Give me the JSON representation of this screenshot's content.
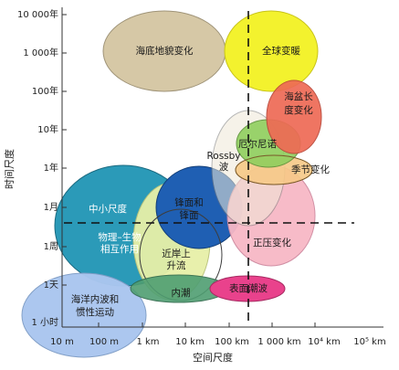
{
  "axes": {
    "y_title": "时间尺度",
    "x_title": "空间尺度",
    "y_ticks": [
      "10 000年",
      "1 000年",
      "100年",
      "10年",
      "1年",
      "1月",
      "1周",
      "1天",
      "1 小时"
    ],
    "x_ticks": [
      "10 m",
      "100 m",
      "1 km",
      "10 km",
      "100 km",
      "1 000 km",
      "10⁴ km",
      "10⁵ km"
    ]
  },
  "regions": {
    "seafloor": "海底地貌变化",
    "global_warming": "全球变暖",
    "basin_line1": "海盆长",
    "basin_line2": "度变化",
    "elnino": "厄尔尼诺",
    "rossby_line1": "Rossby",
    "rossby_line2": "波",
    "seasonal": "季节变化",
    "meso": "中小尺度",
    "fronts_line1": "锋面和",
    "fronts_line2": "锋面",
    "biophys_line1": "物理–生物",
    "biophys_line2": "相互作用",
    "upwelling_line1": "近岸上",
    "upwelling_line2": "升流",
    "pressure": "正压变化",
    "internal_tide": "内潮",
    "surface_waves": "表面潮波",
    "internal_waves_line1": "海洋内波和",
    "internal_waves_line2": "惯性运动"
  },
  "colors": {
    "seafloor": "#d4c6a2",
    "global_warming": "#f3f22e",
    "basin": "#ee6a55",
    "elnino": "#8fcf5e",
    "seasonal": "#f7c987",
    "meso": "#2b9ab8",
    "fronts": "#1f5fb3",
    "biophys": "#e7f0a8",
    "pressure": "#f7b8c6",
    "internal_tide": "#4f9e72",
    "surface_waves": "#e9428c",
    "internal_waves": "#aac6ef"
  }
}
